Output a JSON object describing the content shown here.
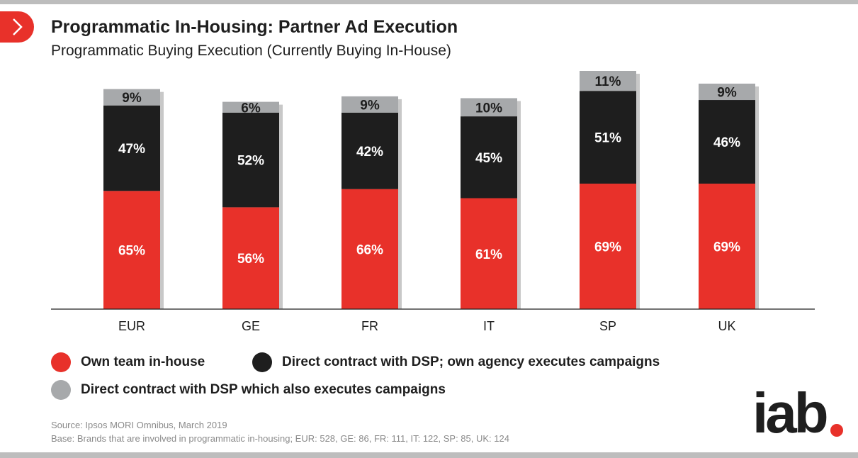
{
  "header": {
    "title": "Programmatic In-Housing: Partner Ad Execution",
    "subtitle": "Programmatic Buying Execution (Currently Buying In-House)"
  },
  "colors": {
    "own_team": "#e8312a",
    "direct_dsp_agency": "#1e1e1e",
    "direct_dsp_executes": "#a7a9ab",
    "accent": "#e8312a"
  },
  "chart_data": {
    "type": "bar",
    "stacked": true,
    "categories": [
      "EUR",
      "GE",
      "FR",
      "IT",
      "SP",
      "UK"
    ],
    "series": [
      {
        "name": "Own team in-house",
        "color": "#e8312a",
        "values": [
          65,
          56,
          66,
          61,
          69,
          69
        ]
      },
      {
        "name": "Direct contract with DSP; own agency executes campaigns",
        "color": "#1e1e1e",
        "values": [
          47,
          52,
          42,
          45,
          51,
          46
        ]
      },
      {
        "name": "Direct contract with DSP which also executes campaigns",
        "color": "#a7a9ab",
        "values": [
          9,
          6,
          9,
          10,
          11,
          9
        ]
      }
    ],
    "value_suffix": "%",
    "ylim": [
      0,
      131
    ],
    "grid": false,
    "legend_position": "bottom-left"
  },
  "footer": {
    "source": "Source: Ipsos MORI Omnibus, March 2019",
    "base": "Base: Brands that are involved in programmatic in-housing; EUR: 528, GE: 86, FR: 111, IT: 122, SP: 85, UK: 124"
  },
  "logo": {
    "text": "iab"
  },
  "nav": {
    "icon": "chevron-right-icon"
  }
}
